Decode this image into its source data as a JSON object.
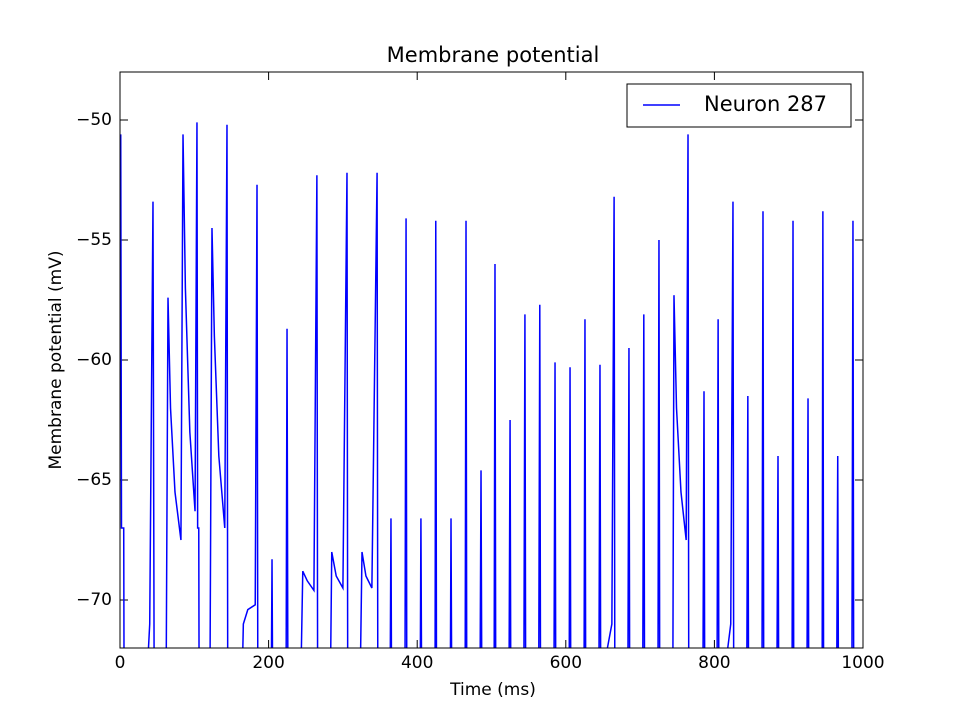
{
  "chart_data": {
    "type": "line",
    "title": "Membrane potential",
    "x_label": "Time (ms)",
    "y_label": "Membrane potential (mV)",
    "xlim": [
      0,
      1000
    ],
    "ylim": [
      -72,
      -48
    ],
    "xticks": [
      0,
      200,
      400,
      600,
      800,
      1000
    ],
    "yticks": [
      {
        "value": -70,
        "label": "−70"
      },
      {
        "value": -65,
        "label": "−65"
      },
      {
        "value": -60,
        "label": "−60"
      },
      {
        "value": -55,
        "label": "−55"
      },
      {
        "value": -50,
        "label": "−50"
      }
    ],
    "legend": "upper right",
    "series": [
      {
        "name": "Neuron 287",
        "color": "#0000ff",
        "x": [
          0,
          1,
          2,
          5,
          5.5,
          35,
          40,
          44.4,
          46,
          62,
          64.6,
          68,
          74,
          82,
          84.8,
          88,
          94,
          101,
          103.6,
          104.5,
          106,
          106.5,
          121,
          123.8,
          127,
          133,
          141,
          144,
          145,
          164,
          166,
          172,
          182,
          184.4,
          185.5,
          203.5,
          204.6,
          205.5,
          223.5,
          224.8,
          226,
          243,
          246,
          252,
          261,
          265,
          266,
          283,
          285,
          291,
          300,
          305.5,
          306.5,
          323,
          325.7,
          331,
          339,
          346,
          347,
          363.5,
          364.7,
          365.5,
          383.5,
          385,
          386,
          404,
          405,
          406,
          424,
          425,
          426,
          444.5,
          445.5,
          446.5,
          464.5,
          465.7,
          466.7,
          484.5,
          485.9,
          487,
          503.5,
          504.7,
          505.7,
          523.5,
          525,
          526,
          543.5,
          545,
          546,
          563.5,
          565,
          566,
          584,
          585.5,
          586.5,
          604.5,
          605.7,
          606.7,
          624.5,
          625.8,
          626.8,
          644.5,
          646,
          647,
          650,
          656,
          662,
          665,
          666,
          683.5,
          685,
          686,
          703.5,
          705,
          706,
          724,
          725.4,
          726.4,
          744,
          745.6,
          749,
          755,
          762,
          764.5,
          765.5,
          784.5,
          786,
          787,
          803.5,
          805,
          806,
          814,
          818,
          822,
          825,
          826,
          843.5,
          845,
          846,
          864,
          865.4,
          866.4,
          884,
          885.6,
          886.6,
          904.5,
          905.8,
          906.8,
          924.5,
          926,
          927,
          945,
          946,
          947,
          964.5,
          966,
          967,
          985,
          986.5,
          987.5
        ],
        "values": [
          -62,
          -50.6,
          -67,
          -67,
          -74,
          -74,
          -71,
          -53.4,
          -74,
          -74,
          -57.4,
          -62,
          -65.5,
          -67.5,
          -50.6,
          -57,
          -63,
          -66.3,
          -50.1,
          -67,
          -67,
          -74,
          -74,
          -54.5,
          -59,
          -64,
          -67,
          -50.2,
          -74,
          -74,
          -71,
          -70.4,
          -70.2,
          -52.7,
          -74,
          -74,
          -68.3,
          -74,
          -74,
          -58.7,
          -74,
          -74,
          -68.8,
          -69.2,
          -69.6,
          -52.3,
          -74,
          -74,
          -68,
          -69,
          -69.5,
          -52.2,
          -74,
          -74,
          -68,
          -69,
          -69.5,
          -52.2,
          -74,
          -74,
          -66.6,
          -74,
          -74,
          -54.1,
          -74,
          -74,
          -66.6,
          -74,
          -74,
          -54.2,
          -74,
          -74,
          -66.6,
          -74,
          -74,
          -54.2,
          -74,
          -74,
          -64.6,
          -74,
          -74,
          -56,
          -74,
          -74,
          -62.5,
          -74,
          -74,
          -58.1,
          -74,
          -74,
          -57.7,
          -74,
          -74,
          -60.1,
          -74,
          -74,
          -60.3,
          -74,
          -74,
          -58.3,
          -74,
          -74,
          -60.2,
          -74,
          -74,
          -72,
          -71,
          -53.2,
          -74,
          -74,
          -59.5,
          -74,
          -74,
          -58.1,
          -74,
          -74,
          -55,
          -74,
          -74,
          -57.3,
          -62,
          -65.5,
          -67.5,
          -50.6,
          -74,
          -74,
          -61.3,
          -74,
          -74,
          -58.3,
          -74,
          -74,
          -72,
          -71,
          -53.4,
          -74,
          -74,
          -61.5,
          -74,
          -74,
          -53.8,
          -74,
          -74,
          -64,
          -74,
          -74,
          -54.2,
          -74,
          -74,
          -61.6,
          -74,
          -74,
          -53.8,
          -74,
          -74,
          -64,
          -74,
          -74,
          -54.2,
          -74
        ]
      }
    ]
  }
}
